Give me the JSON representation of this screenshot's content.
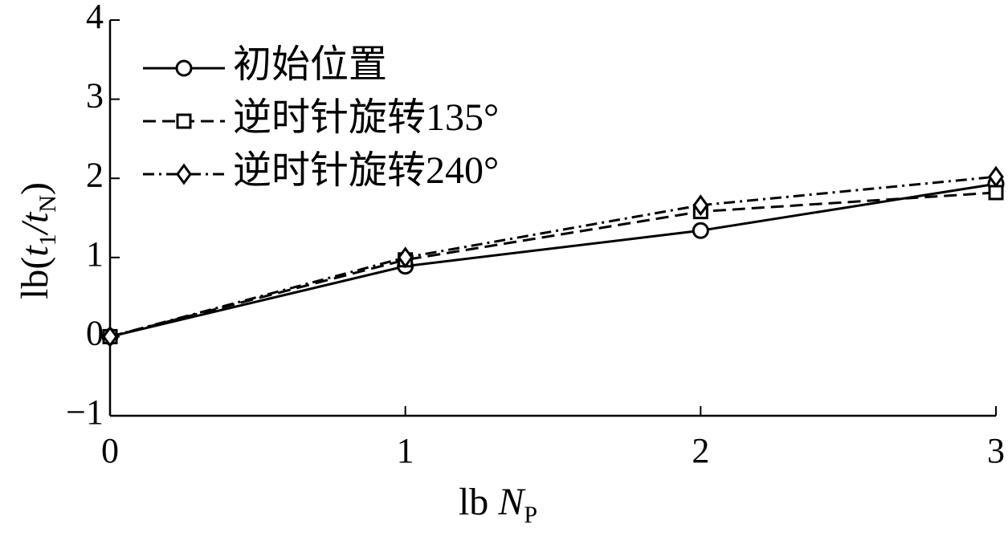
{
  "chart_data": {
    "type": "line",
    "xlabel": [
      "lb ",
      "N",
      "P"
    ],
    "ylabel": [
      "lb(",
      "t",
      "1",
      "/",
      "t",
      "N",
      ")"
    ],
    "x": [
      0,
      1,
      2,
      3
    ],
    "series": [
      {
        "name": "初始位置",
        "color": "#000000",
        "dash": "solid",
        "marker": "circle",
        "values": [
          0,
          0.89,
          1.34,
          1.93
        ]
      },
      {
        "name": "逆时针旋转135°",
        "color": "#000000",
        "dash": "dashed",
        "marker": "square",
        "values": [
          0,
          0.97,
          1.58,
          1.82
        ]
      },
      {
        "name": "逆时针旋转240°",
        "color": "#000000",
        "dash": "dashdot",
        "marker": "diamond",
        "values": [
          0,
          1.0,
          1.66,
          2.02
        ]
      }
    ],
    "xlim": [
      0,
      3
    ],
    "xticks": [
      0,
      1,
      2,
      3
    ],
    "ylim": [
      -1,
      4
    ],
    "yticks": [
      {
        "value": -1,
        "label": "−1"
      },
      0,
      1,
      2,
      3,
      4
    ],
    "legend": "upper left",
    "grid": false
  }
}
